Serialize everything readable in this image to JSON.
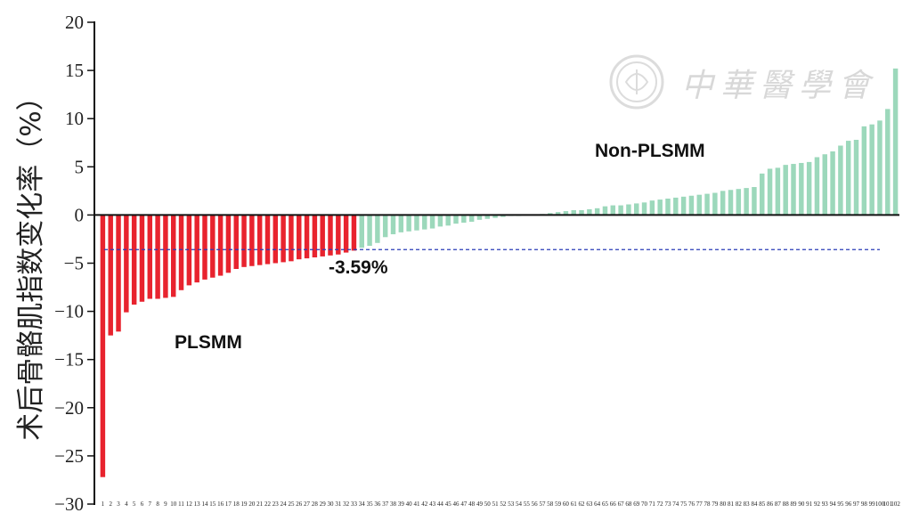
{
  "chart_data": {
    "type": "bar",
    "ylabel": "术后骨骼肌指数变化率（%）",
    "xlabel": "",
    "ylim": [
      -30,
      20
    ],
    "yticks": [
      20,
      15,
      10,
      5,
      0,
      -5,
      -10,
      -15,
      -20,
      -25,
      -30
    ],
    "ytick_labels": [
      "20",
      "15",
      "10",
      "5",
      "0",
      "−5",
      "−10",
      "−15",
      "−20",
      "−25",
      "−30"
    ],
    "threshold": {
      "value": -3.59,
      "label": "-3.59%"
    },
    "series": [
      {
        "name": "PLSMM",
        "color": "#e8232e",
        "values": [
          -27.2,
          -12.5,
          -12.1,
          -10.1,
          -9.3,
          -9.0,
          -8.7,
          -8.7,
          -8.6,
          -8.5,
          -7.8,
          -7.3,
          -7.0,
          -6.7,
          -6.5,
          -6.3,
          -6.0,
          -5.6,
          -5.4,
          -5.3,
          -5.2,
          -5.1,
          -5.0,
          -4.9,
          -4.8,
          -4.6,
          -4.5,
          -4.4,
          -4.3,
          -4.2,
          -4.1,
          -3.9,
          -3.7
        ]
      },
      {
        "name": "Non-PLSMM",
        "color": "#9cd8bb",
        "values": [
          -3.4,
          -3.2,
          -2.9,
          -2.3,
          -2.0,
          -1.8,
          -1.7,
          -1.6,
          -1.5,
          -1.4,
          -1.2,
          -1.1,
          -0.9,
          -0.8,
          -0.7,
          -0.5,
          -0.4,
          -0.3,
          -0.2,
          -0.1,
          -0.1,
          0.0,
          0.0,
          0.1,
          0.2,
          0.3,
          0.4,
          0.5,
          0.5,
          0.6,
          0.7,
          0.9,
          1.0,
          1.0,
          1.1,
          1.2,
          1.3,
          1.5,
          1.6,
          1.7,
          1.8,
          1.9,
          2.0,
          2.1,
          2.2,
          2.3,
          2.5,
          2.6,
          2.7,
          2.8,
          2.9,
          4.3,
          4.8,
          4.9,
          5.2,
          5.3,
          5.4,
          5.5,
          6.0,
          6.3,
          6.6,
          7.2,
          7.7,
          7.8,
          9.2,
          9.4,
          9.8,
          11.0,
          15.2
        ]
      }
    ],
    "annotations": [
      {
        "text": "PLSMM"
      },
      {
        "text": "Non-PLSMM"
      },
      {
        "text": "-3.59%"
      }
    ],
    "grid": false,
    "legend": "none"
  },
  "watermark": {
    "text": "中華醫學會",
    "icon": "seal-icon"
  }
}
